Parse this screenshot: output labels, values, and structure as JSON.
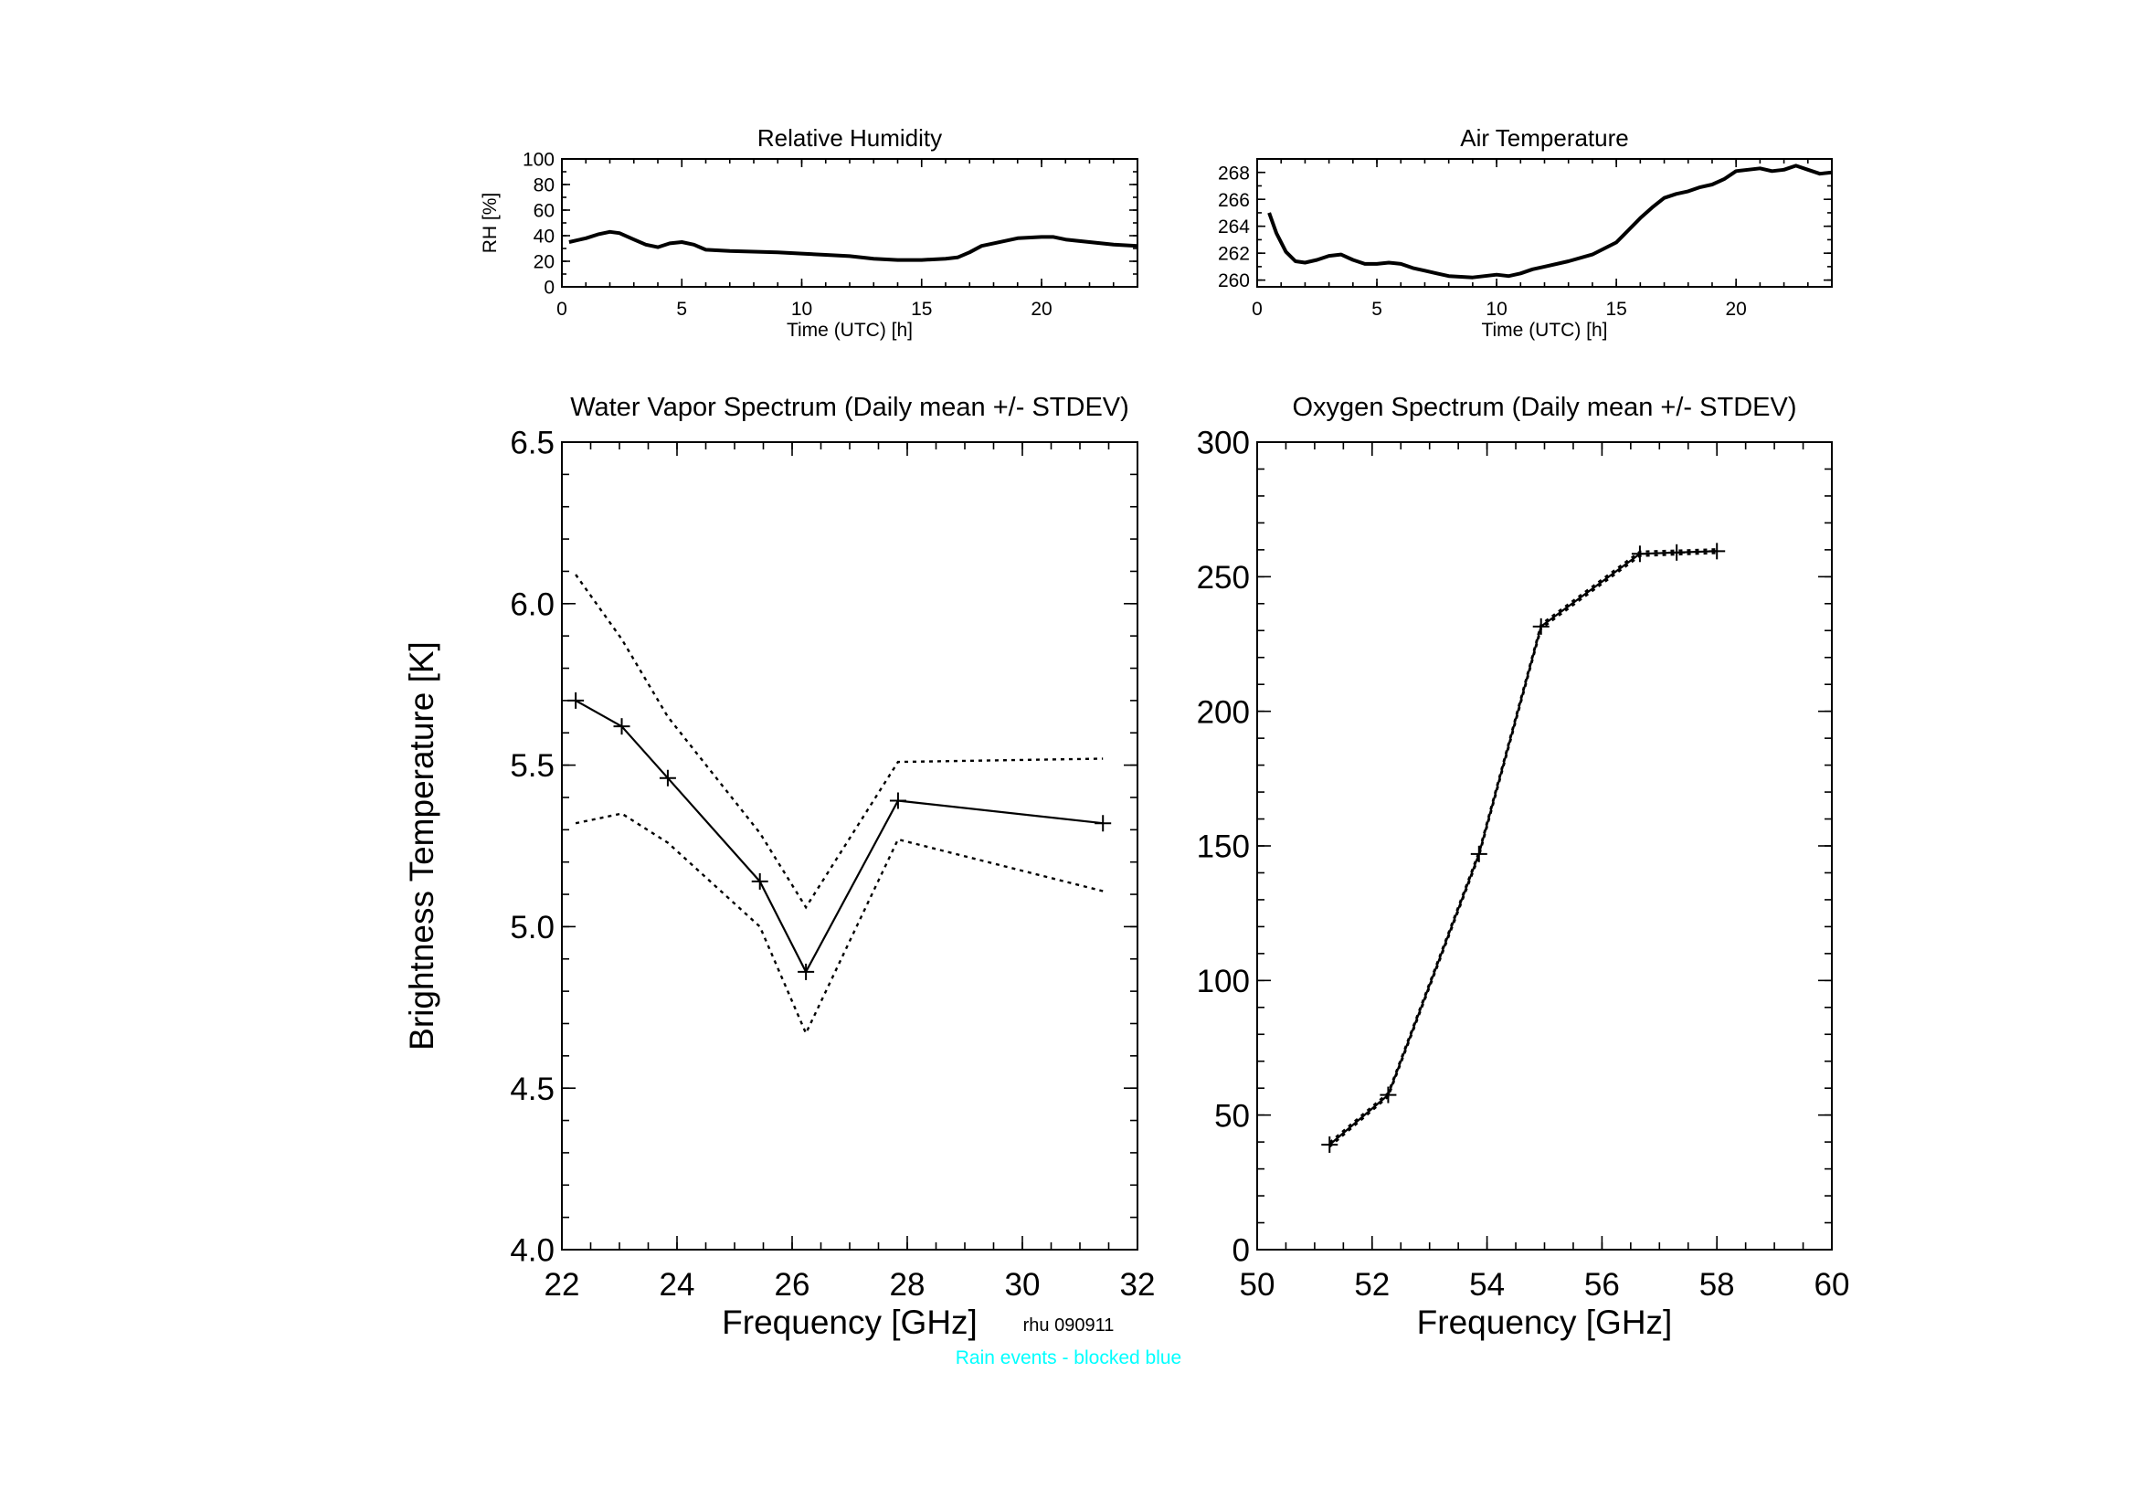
{
  "chart_data": [
    {
      "id": "rh",
      "type": "line",
      "title": "Relative Humidity",
      "xlabel": "Time (UTC) [h]",
      "ylabel": "RH [%]",
      "xlim": [
        0,
        24
      ],
      "ylim": [
        0,
        100
      ],
      "xticks": [
        0,
        5,
        10,
        15,
        20
      ],
      "yticks": [
        0,
        20,
        40,
        60,
        80,
        100
      ],
      "grid": false,
      "series": [
        {
          "x": [
            0.3,
            1,
            1.5,
            2,
            2.4,
            3,
            3.5,
            4,
            4.5,
            5,
            5.5,
            6,
            7,
            8,
            9,
            10,
            11,
            12,
            13,
            14,
            15,
            16,
            16.5,
            17,
            17.5,
            18,
            19,
            20,
            20.5,
            21,
            22,
            23,
            24
          ],
          "y": [
            35,
            38,
            41,
            43,
            42,
            37,
            33,
            31,
            34,
            35,
            33,
            29,
            28,
            27.5,
            27,
            26,
            25,
            24,
            22,
            21,
            21,
            22,
            23,
            27,
            32,
            34,
            38,
            39,
            39,
            37,
            35,
            33,
            32
          ]
        }
      ]
    },
    {
      "id": "temp",
      "type": "line",
      "title": "Air Temperature",
      "xlabel": "Time (UTC) [h]",
      "ylabel": "",
      "xlim": [
        0,
        24
      ],
      "ylim": [
        259.5,
        269
      ],
      "xticks": [
        0,
        5,
        10,
        15,
        20
      ],
      "yticks": [
        260,
        262,
        264,
        266,
        268
      ],
      "grid": false,
      "series": [
        {
          "x": [
            0.5,
            0.8,
            1.2,
            1.6,
            2,
            2.5,
            3,
            3.5,
            4,
            4.5,
            5,
            5.5,
            6,
            6.5,
            7,
            7.5,
            8,
            9,
            10,
            10.5,
            11,
            11.5,
            12,
            13,
            14,
            15,
            15.5,
            16,
            16.5,
            17,
            17.5,
            18,
            18.5,
            19,
            19.5,
            20,
            20.5,
            21,
            21.5,
            22,
            22.5,
            23,
            23.5,
            24
          ],
          "y": [
            265,
            263.5,
            262.1,
            261.4,
            261.3,
            261.5,
            261.8,
            261.9,
            261.5,
            261.2,
            261.2,
            261.3,
            261.2,
            260.9,
            260.7,
            260.5,
            260.3,
            260.2,
            260.4,
            260.3,
            260.5,
            260.8,
            261,
            261.4,
            261.9,
            262.8,
            263.7,
            264.6,
            265.4,
            266.1,
            266.4,
            266.6,
            266.9,
            267.1,
            267.5,
            268.1,
            268.2,
            268.3,
            268.1,
            268.2,
            268.5,
            268.2,
            267.9,
            268
          ]
        }
      ]
    },
    {
      "id": "wv",
      "type": "line",
      "title": "Water Vapor Spectrum (Daily mean +/- STDEV)",
      "xlabel": "Frequency [GHz]",
      "ylabel": "Brightness Temperature [K]",
      "xlim": [
        22,
        32
      ],
      "ylim": [
        4.0,
        6.5
      ],
      "xticks": [
        22,
        24,
        26,
        28,
        30,
        32
      ],
      "yticks": [
        4.0,
        4.5,
        5.0,
        5.5,
        6.0,
        6.5
      ],
      "ytick_labels": [
        "4.0",
        "4.5",
        "5.0",
        "5.5",
        "6.0",
        "6.5"
      ],
      "grid": false,
      "x": [
        22.24,
        23.04,
        23.84,
        25.44,
        26.24,
        27.84,
        31.4
      ],
      "series": [
        {
          "role": "mean",
          "values": [
            5.7,
            5.62,
            5.46,
            5.14,
            4.86,
            5.39,
            5.32
          ]
        },
        {
          "role": "mean+stdev",
          "values": [
            6.09,
            5.89,
            5.65,
            5.29,
            5.06,
            5.51,
            5.52
          ]
        },
        {
          "role": "mean-stdev",
          "values": [
            5.32,
            5.35,
            5.26,
            5.0,
            4.67,
            5.27,
            5.11
          ]
        }
      ]
    },
    {
      "id": "o2",
      "type": "line",
      "title": "Oxygen Spectrum (Daily mean +/- STDEV)",
      "xlabel": "Frequency [GHz]",
      "ylabel": "",
      "xlim": [
        50,
        60
      ],
      "ylim": [
        0,
        300
      ],
      "xticks": [
        50,
        52,
        54,
        56,
        58,
        60
      ],
      "yticks": [
        0,
        50,
        100,
        150,
        200,
        250,
        300
      ],
      "grid": false,
      "x": [
        51.26,
        52.28,
        53.86,
        54.94,
        56.66,
        57.3,
        58.0
      ],
      "series": [
        {
          "role": "mean",
          "values": [
            39,
            57.5,
            147,
            231.5,
            258.5,
            259,
            259.5
          ]
        },
        {
          "role": "mean+stdev",
          "values": [
            39.8,
            58.2,
            147.8,
            232.3,
            259.3,
            259.7,
            260.2
          ]
        },
        {
          "role": "mean-stdev",
          "values": [
            38.2,
            56.8,
            146.2,
            230.7,
            257.7,
            258.3,
            258.8
          ]
        }
      ]
    }
  ],
  "footer": {
    "station": "rhu 090911",
    "rain_note": "Rain events - blocked blue",
    "rain_color": "#00ffff"
  }
}
